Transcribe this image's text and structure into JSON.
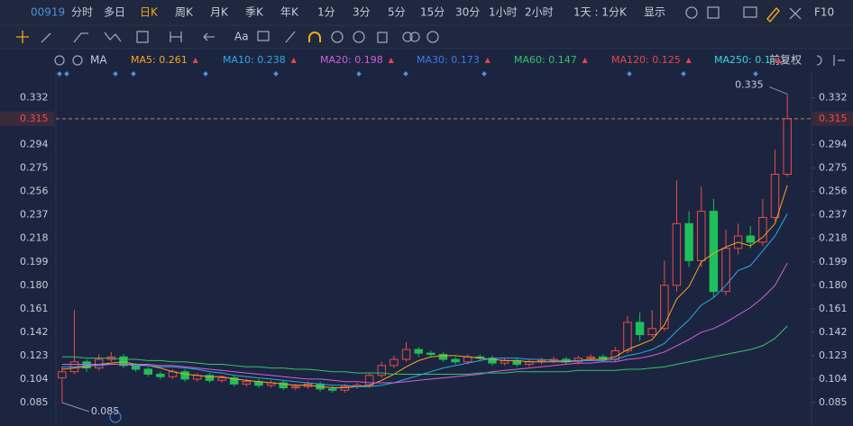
{
  "toolbar": {
    "code": "00919",
    "periods": [
      "分时",
      "多日",
      "日K",
      "周K",
      "月K",
      "季K",
      "年K",
      "1分",
      "3分",
      "5分",
      "15分",
      "30分",
      "1小时",
      "2小时",
      "1天 : 1分K",
      "显示"
    ],
    "active": "日K",
    "f10": "F10",
    "font_tool": "Aa"
  },
  "indicator": {
    "name": "MA",
    "adjust": "前复权",
    "legend": [
      {
        "label": "MA5: 0.261",
        "color": "#f5a623"
      },
      {
        "label": "MA10: 0.238",
        "color": "#2fa8e8"
      },
      {
        "label": "MA20: 0.198",
        "color": "#d35fd8"
      },
      {
        "label": "MA30: 0.173",
        "color": "#3a7be8"
      },
      {
        "label": "MA60: 0.147",
        "color": "#35c46a"
      },
      {
        "label": "MA120: 0.125",
        "color": "#e8454a"
      },
      {
        "label": "MA250: 0.1",
        "color": "#39d5e0"
      }
    ]
  },
  "chart_data": {
    "type": "candlestick",
    "up_color": "#ec4a4f",
    "down_color": "#1fbf5a",
    "open": [
      0.105,
      0.11,
      0.118,
      0.113,
      0.12,
      0.122,
      0.115,
      0.112,
      0.108,
      0.106,
      0.11,
      0.104,
      0.107,
      0.103,
      0.105,
      0.1,
      0.102,
      0.099,
      0.101,
      0.097,
      0.098,
      0.1,
      0.096,
      0.095,
      0.098,
      0.099,
      0.107,
      0.115,
      0.12,
      0.128,
      0.125,
      0.124,
      0.12,
      0.118,
      0.122,
      0.121,
      0.117,
      0.119,
      0.116,
      0.118,
      0.119,
      0.12,
      0.118,
      0.121,
      0.122,
      0.12,
      0.127,
      0.15,
      0.14,
      0.145,
      0.18,
      0.23,
      0.2,
      0.24,
      0.175,
      0.21,
      0.22,
      0.215,
      0.235,
      0.27
    ],
    "high": [
      0.114,
      0.16,
      0.12,
      0.124,
      0.126,
      0.124,
      0.117,
      0.114,
      0.11,
      0.112,
      0.112,
      0.109,
      0.109,
      0.107,
      0.107,
      0.104,
      0.104,
      0.103,
      0.103,
      0.1,
      0.102,
      0.102,
      0.098,
      0.1,
      0.101,
      0.109,
      0.118,
      0.123,
      0.134,
      0.13,
      0.127,
      0.126,
      0.122,
      0.124,
      0.124,
      0.123,
      0.121,
      0.121,
      0.12,
      0.121,
      0.122,
      0.122,
      0.123,
      0.124,
      0.124,
      0.13,
      0.155,
      0.158,
      0.16,
      0.2,
      0.265,
      0.24,
      0.26,
      0.25,
      0.225,
      0.23,
      0.228,
      0.25,
      0.29,
      0.335
    ],
    "low": [
      0.085,
      0.108,
      0.11,
      0.111,
      0.118,
      0.113,
      0.11,
      0.106,
      0.104,
      0.104,
      0.102,
      0.102,
      0.101,
      0.101,
      0.098,
      0.098,
      0.097,
      0.097,
      0.095,
      0.095,
      0.096,
      0.094,
      0.093,
      0.093,
      0.096,
      0.097,
      0.105,
      0.113,
      0.118,
      0.122,
      0.122,
      0.118,
      0.116,
      0.116,
      0.119,
      0.115,
      0.115,
      0.114,
      0.114,
      0.116,
      0.117,
      0.116,
      0.116,
      0.119,
      0.118,
      0.118,
      0.125,
      0.135,
      0.138,
      0.143,
      0.175,
      0.195,
      0.195,
      0.17,
      0.172,
      0.205,
      0.21,
      0.212,
      0.232,
      0.268
    ],
    "close": [
      0.11,
      0.118,
      0.113,
      0.12,
      0.122,
      0.115,
      0.112,
      0.108,
      0.106,
      0.11,
      0.104,
      0.107,
      0.103,
      0.105,
      0.1,
      0.102,
      0.099,
      0.101,
      0.097,
      0.098,
      0.1,
      0.096,
      0.095,
      0.098,
      0.099,
      0.107,
      0.115,
      0.12,
      0.128,
      0.125,
      0.124,
      0.12,
      0.118,
      0.122,
      0.121,
      0.117,
      0.119,
      0.116,
      0.118,
      0.119,
      0.12,
      0.118,
      0.121,
      0.122,
      0.12,
      0.127,
      0.15,
      0.14,
      0.145,
      0.18,
      0.23,
      0.2,
      0.24,
      0.175,
      0.21,
      0.22,
      0.215,
      0.235,
      0.27,
      0.315
    ],
    "series": [
      {
        "name": "MA5",
        "color": "#f5a623",
        "values": [
          0.112,
          0.113,
          0.114,
          0.116,
          0.117,
          0.118,
          0.116,
          0.115,
          0.113,
          0.11,
          0.108,
          0.107,
          0.106,
          0.106,
          0.104,
          0.103,
          0.102,
          0.101,
          0.1,
          0.099,
          0.099,
          0.098,
          0.097,
          0.097,
          0.098,
          0.099,
          0.103,
          0.108,
          0.114,
          0.119,
          0.122,
          0.123,
          0.123,
          0.122,
          0.121,
          0.12,
          0.119,
          0.119,
          0.118,
          0.118,
          0.118,
          0.118,
          0.119,
          0.12,
          0.12,
          0.122,
          0.128,
          0.132,
          0.136,
          0.148,
          0.169,
          0.179,
          0.199,
          0.206,
          0.211,
          0.215,
          0.212,
          0.219,
          0.23,
          0.261
        ]
      },
      {
        "name": "MA10",
        "color": "#2fa8e8",
        "values": [
          0.114,
          0.114,
          0.115,
          0.115,
          0.116,
          0.116,
          0.115,
          0.115,
          0.114,
          0.114,
          0.113,
          0.112,
          0.11,
          0.109,
          0.107,
          0.106,
          0.105,
          0.104,
          0.103,
          0.102,
          0.101,
          0.1,
          0.099,
          0.099,
          0.098,
          0.098,
          0.099,
          0.101,
          0.104,
          0.107,
          0.11,
          0.113,
          0.115,
          0.117,
          0.119,
          0.121,
          0.121,
          0.121,
          0.12,
          0.12,
          0.119,
          0.119,
          0.119,
          0.119,
          0.119,
          0.12,
          0.123,
          0.125,
          0.128,
          0.133,
          0.143,
          0.152,
          0.164,
          0.17,
          0.18,
          0.192,
          0.196,
          0.208,
          0.22,
          0.238
        ]
      },
      {
        "name": "MA20",
        "color": "#d35fd8",
        "values": [
          0.116,
          0.116,
          0.116,
          0.116,
          0.116,
          0.116,
          0.116,
          0.116,
          0.115,
          0.115,
          0.114,
          0.113,
          0.112,
          0.111,
          0.11,
          0.109,
          0.108,
          0.107,
          0.106,
          0.105,
          0.104,
          0.104,
          0.103,
          0.102,
          0.102,
          0.101,
          0.101,
          0.101,
          0.102,
          0.103,
          0.104,
          0.105,
          0.106,
          0.107,
          0.108,
          0.11,
          0.111,
          0.112,
          0.113,
          0.114,
          0.115,
          0.116,
          0.117,
          0.117,
          0.118,
          0.118,
          0.12,
          0.121,
          0.123,
          0.126,
          0.131,
          0.136,
          0.142,
          0.145,
          0.15,
          0.156,
          0.162,
          0.17,
          0.18,
          0.198
        ]
      },
      {
        "name": "MA60",
        "color": "#35c46a",
        "values": [
          0.122,
          0.122,
          0.121,
          0.121,
          0.121,
          0.12,
          0.12,
          0.119,
          0.119,
          0.118,
          0.118,
          0.117,
          0.116,
          0.116,
          0.115,
          0.114,
          0.114,
          0.113,
          0.113,
          0.112,
          0.112,
          0.111,
          0.11,
          0.11,
          0.109,
          0.109,
          0.109,
          0.108,
          0.108,
          0.108,
          0.108,
          0.108,
          0.108,
          0.108,
          0.109,
          0.109,
          0.109,
          0.11,
          0.11,
          0.11,
          0.11,
          0.11,
          0.111,
          0.111,
          0.111,
          0.111,
          0.112,
          0.112,
          0.113,
          0.114,
          0.116,
          0.118,
          0.12,
          0.122,
          0.124,
          0.126,
          0.128,
          0.131,
          0.137,
          0.147
        ]
      }
    ],
    "ylim": [
      0.066,
      0.347
    ],
    "yticks": [
      0.332,
      0.294,
      0.275,
      0.256,
      0.237,
      0.218,
      0.199,
      {
        "value": 0.18,
        "label": "0.180"
      },
      0.161,
      0.142,
      0.123,
      0.104,
      0.085
    ],
    "last_price": 0.315,
    "max_marker": 0.335,
    "min_marker": 0.085
  }
}
